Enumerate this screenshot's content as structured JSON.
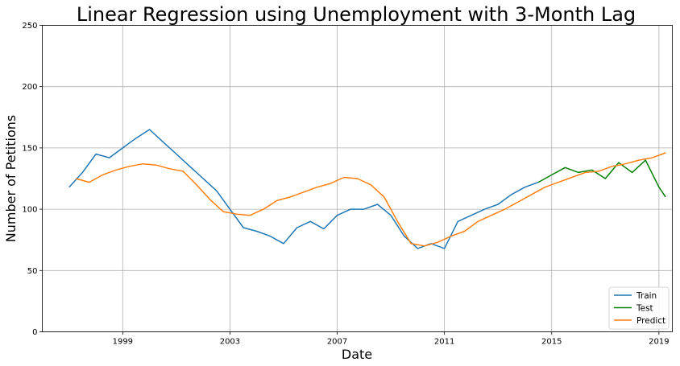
{
  "chart_data": {
    "type": "line",
    "title": "Linear Regression using Unemployment with 3-Month Lag",
    "xlabel": "Date",
    "ylabel": "Number of Petitions",
    "xlim": [
      "1996-01",
      "2019-07"
    ],
    "ylim": [
      0,
      250
    ],
    "x_ticks": [
      "1999",
      "2003",
      "2007",
      "2011",
      "2015",
      "2019"
    ],
    "y_ticks": [
      0,
      50,
      100,
      150,
      200,
      250
    ],
    "grid": true,
    "legend_position": "lower-right",
    "colors": {
      "train": "#1f77b4",
      "test": "#008000",
      "predict": "#ff7f0e"
    },
    "series": [
      {
        "name": "Train",
        "color": "#1f77b4",
        "x": [
          "1997-01",
          "1997-07",
          "1998-01",
          "1998-07",
          "1999-01",
          "1999-07",
          "2000-01",
          "2000-07",
          "2001-01",
          "2001-07",
          "2002-01",
          "2002-07",
          "2003-01",
          "2003-07",
          "2004-01",
          "2004-07",
          "2005-01",
          "2005-07",
          "2006-01",
          "2006-07",
          "2007-01",
          "2007-07",
          "2008-01",
          "2008-07",
          "2009-01",
          "2009-07",
          "2010-01",
          "2010-07",
          "2011-01",
          "2011-07",
          "2012-01",
          "2012-07",
          "2013-01",
          "2013-07",
          "2014-01",
          "2014-07"
        ],
        "values": [
          118,
          130,
          145,
          142,
          150,
          158,
          165,
          155,
          145,
          135,
          125,
          115,
          100,
          85,
          82,
          78,
          72,
          85,
          90,
          84,
          95,
          100,
          100,
          104,
          95,
          78,
          68,
          72,
          68,
          90,
          95,
          100,
          104,
          112,
          118,
          122
        ]
      },
      {
        "name": "Test",
        "color": "#008000",
        "x": [
          "2014-07",
          "2015-01",
          "2015-07",
          "2016-01",
          "2016-07",
          "2017-01",
          "2017-07",
          "2018-01",
          "2018-07",
          "2019-01",
          "2019-04"
        ],
        "values": [
          122,
          128,
          134,
          130,
          132,
          125,
          138,
          130,
          140,
          118,
          110
        ]
      },
      {
        "name": "Predict",
        "color": "#ff7f0e",
        "x": [
          "1997-04",
          "1997-10",
          "1998-04",
          "1998-10",
          "1999-04",
          "1999-10",
          "2000-04",
          "2000-10",
          "2001-04",
          "2001-10",
          "2002-04",
          "2002-10",
          "2003-04",
          "2003-10",
          "2004-04",
          "2004-10",
          "2005-04",
          "2005-10",
          "2006-04",
          "2006-10",
          "2007-04",
          "2007-10",
          "2008-04",
          "2008-10",
          "2009-04",
          "2009-10",
          "2010-04",
          "2010-10",
          "2011-04",
          "2011-10",
          "2012-04",
          "2012-10",
          "2013-04",
          "2013-10",
          "2014-04",
          "2014-10",
          "2015-04",
          "2015-10",
          "2016-04",
          "2016-10",
          "2017-04",
          "2017-10",
          "2018-04",
          "2018-10",
          "2019-04"
        ],
        "values": [
          125,
          122,
          128,
          132,
          135,
          137,
          136,
          133,
          131,
          120,
          108,
          98,
          96,
          95,
          100,
          107,
          110,
          114,
          118,
          121,
          126,
          125,
          120,
          110,
          90,
          72,
          70,
          73,
          78,
          82,
          90,
          95,
          100,
          106,
          112,
          118,
          122,
          126,
          130,
          131,
          135,
          137,
          140,
          142,
          146
        ]
      }
    ]
  }
}
